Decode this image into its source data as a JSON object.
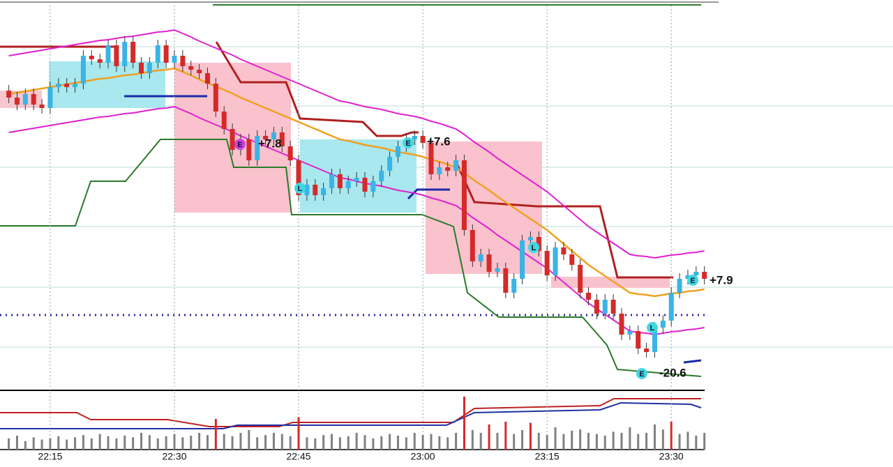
{
  "chart_data": {
    "type": "candlestick",
    "ylim": [
      0,
      560
    ],
    "up_color": "#3ab4e6",
    "down_color": "#d42a2a",
    "categories": [
      null,
      null,
      null,
      null,
      null,
      "22:15",
      null,
      null,
      null,
      null,
      null,
      null,
      null,
      null,
      null,
      null,
      null,
      null,
      null,
      null,
      "22:30",
      null,
      null,
      null,
      null,
      null,
      null,
      null,
      null,
      null,
      null,
      null,
      null,
      null,
      null,
      "22:45",
      null,
      null,
      null,
      null,
      null,
      null,
      null,
      null,
      null,
      null,
      null,
      null,
      null,
      null,
      "23:00",
      null,
      null,
      null,
      null,
      null,
      null,
      null,
      null,
      null,
      null,
      null,
      null,
      null,
      null,
      "23:15",
      null,
      null,
      null,
      null,
      null,
      null,
      null,
      null,
      null,
      null,
      null,
      null,
      null,
      null,
      "23:30",
      null,
      null,
      null,
      null
    ],
    "open": [
      430,
      420,
      410,
      425,
      410,
      405,
      435,
      440,
      435,
      440,
      480,
      475,
      470,
      495,
      465,
      500,
      470,
      455,
      470,
      495,
      470,
      480,
      465,
      460,
      455,
      440,
      400,
      375,
      345,
      360,
      330,
      365,
      360,
      370,
      350,
      330,
      280,
      295,
      280,
      290,
      310,
      290,
      300,
      305,
      285,
      300,
      315,
      335,
      350,
      360,
      365,
      355,
      310,
      320,
      315,
      330,
      230,
      185,
      195,
      170,
      175,
      140,
      160,
      215,
      220,
      200,
      165,
      205,
      195,
      180,
      140,
      130,
      110,
      130,
      110,
      80,
      85,
      60,
      55,
      90,
      100,
      140,
      160,
      165,
      170
    ],
    "high": [
      438,
      428,
      433,
      433,
      418,
      443,
      448,
      448,
      448,
      488,
      488,
      483,
      503,
      503,
      508,
      508,
      478,
      478,
      503,
      503,
      488,
      488,
      473,
      468,
      463,
      448,
      408,
      383,
      368,
      368,
      373,
      373,
      378,
      378,
      358,
      338,
      303,
      303,
      298,
      318,
      318,
      308,
      313,
      313,
      308,
      323,
      343,
      358,
      368,
      373,
      373,
      363,
      328,
      328,
      338,
      338,
      238,
      203,
      203,
      183,
      183,
      168,
      223,
      228,
      228,
      208,
      213,
      213,
      203,
      188,
      148,
      138,
      138,
      138,
      118,
      93,
      93,
      68,
      98,
      108,
      148,
      168,
      173,
      178,
      178
    ],
    "low": [
      412,
      402,
      402,
      402,
      397,
      397,
      427,
      427,
      427,
      432,
      467,
      462,
      462,
      457,
      457,
      462,
      447,
      447,
      462,
      462,
      462,
      457,
      452,
      447,
      432,
      392,
      367,
      337,
      337,
      322,
      322,
      352,
      352,
      342,
      322,
      272,
      272,
      272,
      272,
      282,
      282,
      282,
      292,
      277,
      277,
      292,
      307,
      327,
      342,
      352,
      347,
      302,
      302,
      307,
      307,
      222,
      177,
      177,
      162,
      162,
      132,
      132,
      152,
      207,
      192,
      157,
      157,
      187,
      172,
      132,
      122,
      102,
      102,
      102,
      72,
      72,
      52,
      47,
      47,
      82,
      92,
      132,
      152,
      157,
      152
    ],
    "close": [
      420,
      410,
      425,
      410,
      405,
      435,
      440,
      435,
      440,
      480,
      475,
      470,
      495,
      465,
      500,
      470,
      455,
      470,
      495,
      470,
      480,
      465,
      460,
      455,
      440,
      400,
      375,
      345,
      360,
      330,
      365,
      360,
      370,
      350,
      330,
      280,
      295,
      280,
      290,
      310,
      290,
      300,
      305,
      285,
      300,
      315,
      335,
      350,
      360,
      365,
      355,
      310,
      320,
      315,
      330,
      230,
      185,
      195,
      170,
      175,
      140,
      160,
      215,
      220,
      200,
      165,
      205,
      195,
      180,
      140,
      130,
      110,
      130,
      110,
      80,
      85,
      60,
      55,
      90,
      100,
      140,
      160,
      165,
      170,
      160
    ],
    "series": [
      {
        "color": "#f0a020",
        "values": [
          425,
          427,
          429,
          431,
          433,
          435,
          437,
          439,
          441,
          443,
          445,
          447,
          448,
          450,
          452,
          453,
          455,
          457,
          459,
          460,
          462,
          457,
          452,
          446,
          441,
          436,
          431,
          426,
          420,
          415,
          410,
          405,
          400,
          395,
          390,
          385,
          380,
          375,
          370,
          365,
          360,
          358,
          355,
          352,
          350,
          348,
          345,
          342,
          340,
          338,
          335,
          331,
          328,
          324,
          320,
          312,
          303,
          295,
          287,
          278,
          270,
          262,
          254,
          246,
          238,
          230,
          220,
          210,
          200,
          190,
          180,
          172,
          164,
          156,
          148,
          140,
          138,
          137,
          135,
          137,
          139,
          140,
          142,
          143,
          145
        ]
      },
      {
        "color": "#e020d0",
        "values": [
          480,
          482,
          484,
          486,
          488,
          490,
          492,
          494,
          496,
          498,
          500,
          502,
          503,
          505,
          507,
          508,
          510,
          512,
          514,
          515,
          517,
          512,
          507,
          501,
          496,
          491,
          486,
          481,
          475,
          470,
          465,
          460,
          455,
          450,
          445,
          440,
          435,
          430,
          425,
          420,
          415,
          413,
          410,
          407,
          405,
          403,
          400,
          397,
          395,
          393,
          390,
          386,
          383,
          379,
          375,
          367,
          358,
          350,
          342,
          333,
          325,
          317,
          309,
          301,
          293,
          285,
          275,
          265,
          255,
          245,
          235,
          227,
          219,
          211,
          203,
          195,
          193,
          192,
          190,
          192,
          194,
          195,
          197,
          198,
          200
        ]
      },
      {
        "color": "#e020d0",
        "values": [
          370,
          372,
          374,
          376,
          378,
          380,
          382,
          384,
          386,
          388,
          390,
          392,
          393,
          395,
          397,
          398,
          400,
          402,
          404,
          405,
          407,
          402,
          397,
          391,
          386,
          381,
          376,
          371,
          365,
          360,
          355,
          350,
          345,
          340,
          335,
          330,
          325,
          320,
          315,
          310,
          305,
          303,
          300,
          297,
          295,
          293,
          290,
          287,
          285,
          283,
          280,
          276,
          273,
          269,
          265,
          257,
          248,
          240,
          232,
          223,
          215,
          207,
          199,
          191,
          183,
          175,
          165,
          155,
          145,
          135,
          125,
          117,
          109,
          101,
          93,
          85,
          83,
          82,
          80,
          82,
          84,
          85,
          87,
          88,
          90
        ]
      }
    ],
    "volume": {
      "ylim": [
        0,
        100
      ],
      "color": "#808080",
      "highlight_color": "#d42a2a",
      "highlighted": [
        25,
        35,
        55,
        58,
        60,
        63,
        80
      ],
      "values": [
        20,
        25,
        15,
        22,
        18,
        20,
        24,
        18,
        22,
        26,
        20,
        28,
        24,
        20,
        25,
        22,
        30,
        26,
        20,
        24,
        28,
        22,
        25,
        30,
        26,
        55,
        28,
        24,
        30,
        35,
        22,
        26,
        30,
        28,
        24,
        58,
        22,
        20,
        26,
        28,
        22,
        24,
        30,
        26,
        20,
        24,
        28,
        25,
        22,
        30,
        26,
        28,
        24,
        22,
        30,
        95,
        35,
        30,
        45,
        30,
        50,
        28,
        35,
        48,
        30,
        26,
        40,
        28,
        34,
        36,
        30,
        28,
        25,
        32,
        30,
        40,
        28,
        30,
        45,
        36,
        50,
        28,
        32,
        25,
        30
      ]
    },
    "annotations": [
      "+7.8",
      "+7.6",
      "+7.9",
      "-20.6"
    ],
    "markers": [
      "E",
      "L",
      "E",
      "L",
      "L",
      "E",
      "E"
    ]
  }
}
